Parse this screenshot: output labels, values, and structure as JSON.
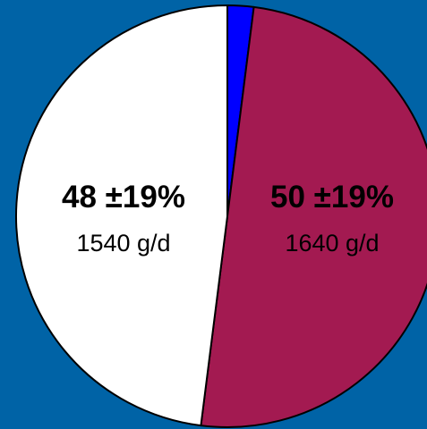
{
  "page": {
    "background": "#0063a6"
  },
  "chart_data": {
    "type": "pie",
    "start_angle_deg": 0,
    "direction": "clockwise",
    "slices": [
      {
        "value": 2,
        "color": "#0000ff",
        "percent_label": "",
        "amount_label": ""
      },
      {
        "value": 50,
        "color": "#a31a51",
        "percent_label": "50 ±19%",
        "amount_label": "1640 g/d"
      },
      {
        "value": 48,
        "color": "#ffffff",
        "percent_label": "48 ±19%",
        "amount_label": "1540 g/d"
      }
    ],
    "stroke_color": "#000000"
  }
}
